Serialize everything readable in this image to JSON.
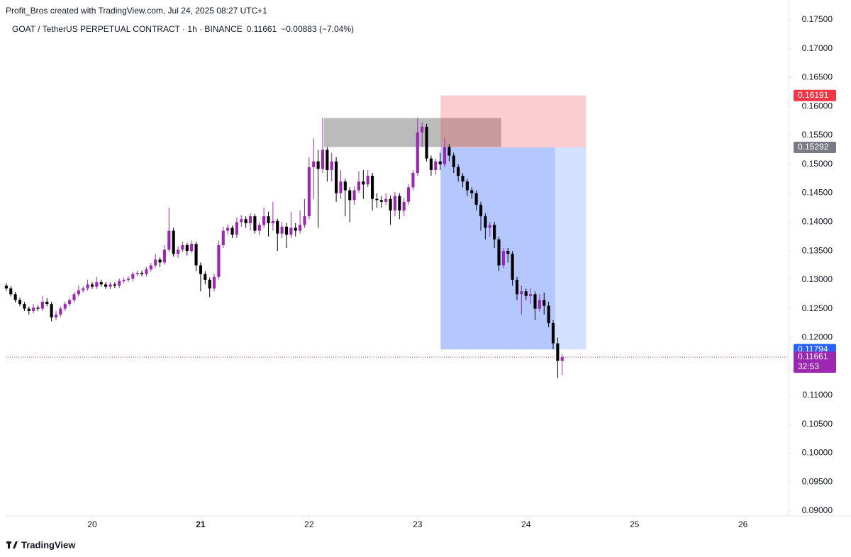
{
  "chart_data": {
    "type": "candlestick",
    "credit": "Profit_Bros created with TradingView.com, Jul 24, 2025 08:27 UTC+1",
    "title": "GOAT / TetherUS PERPETUAL CONTRACT · 1h · BINANCE",
    "last_price": "0.11661",
    "change": "−0.00883 (−7.04%)",
    "brand": "TradingView",
    "up_color": "#9c27b0",
    "down_color": "#000000",
    "x": [
      0,
      1,
      2,
      3,
      4,
      5,
      6,
      7,
      8,
      9,
      10,
      11,
      12,
      13,
      14,
      15,
      16,
      17,
      18,
      19,
      20,
      21,
      22,
      23,
      24,
      25,
      26,
      27,
      28,
      29,
      30,
      31,
      32,
      33,
      34,
      35,
      36,
      37,
      38,
      39,
      40,
      41,
      42,
      43,
      44,
      45,
      46,
      47,
      48,
      49,
      50,
      51,
      52,
      53,
      54,
      55,
      56,
      57,
      58,
      59,
      60,
      61,
      62,
      63,
      64,
      65,
      66,
      67,
      68,
      69,
      70,
      71,
      72,
      73,
      74,
      75,
      76,
      77,
      78,
      79,
      80,
      81,
      82,
      83,
      84,
      85,
      86,
      87,
      88,
      89,
      90,
      91,
      92,
      93,
      94,
      95,
      96,
      97,
      98,
      99,
      100,
      101,
      102,
      103,
      104,
      105,
      106,
      107,
      108,
      109,
      110,
      111,
      112,
      113,
      114,
      115,
      116,
      117,
      118,
      119,
      120,
      121,
      122,
      123
    ],
    "open": [
      0.129,
      0.1285,
      0.1275,
      0.1265,
      0.1258,
      0.125,
      0.1246,
      0.1252,
      0.125,
      0.1262,
      0.1258,
      0.1235,
      0.124,
      0.125,
      0.1258,
      0.1265,
      0.1275,
      0.1282,
      0.1285,
      0.1292,
      0.1288,
      0.1296,
      0.1292,
      0.1288,
      0.1292,
      0.129,
      0.1298,
      0.13,
      0.1302,
      0.131,
      0.1312,
      0.131,
      0.1318,
      0.1325,
      0.1335,
      0.133,
      0.1352,
      0.1385,
      0.1345,
      0.1352,
      0.136,
      0.135,
      0.1362,
      0.1325,
      0.131,
      0.13,
      0.1285,
      0.1305,
      0.136,
      0.1385,
      0.139,
      0.1378,
      0.14,
      0.1405,
      0.1398,
      0.141,
      0.1385,
      0.1395,
      0.141,
      0.1398,
      0.1402,
      0.138,
      0.1392,
      0.1378,
      0.139,
      0.1385,
      0.1395,
      0.141,
      0.1495,
      0.1505,
      0.1492,
      0.1525,
      0.149,
      0.1505,
      0.145,
      0.147,
      0.1455,
      0.1438,
      0.1455,
      0.147,
      0.1465,
      0.148,
      0.144,
      0.1438,
      0.1435,
      0.144,
      0.142,
      0.1445,
      0.142,
      0.1435,
      0.146,
      0.1485,
      0.1555,
      0.1565,
      0.151,
      0.149,
      0.1505,
      0.15,
      0.153,
      0.1515,
      0.1495,
      0.148,
      0.147,
      0.1455,
      0.145,
      0.143,
      0.141,
      0.139,
      0.1395,
      0.137,
      0.1325,
      0.135,
      0.1345,
      0.13,
      0.1275,
      0.128,
      0.1272,
      0.1275,
      0.125,
      0.1265,
      0.1255,
      0.1225,
      0.119,
      0.116
    ],
    "high": [
      0.1294,
      0.1289,
      0.1279,
      0.1269,
      0.1262,
      0.1254,
      0.1258,
      0.1256,
      0.1272,
      0.1268,
      0.1262,
      0.1246,
      0.1254,
      0.1262,
      0.1269,
      0.1279,
      0.129,
      0.1289,
      0.13,
      0.1296,
      0.1305,
      0.13,
      0.1296,
      0.1296,
      0.1296,
      0.1302,
      0.1304,
      0.1306,
      0.1314,
      0.1316,
      0.1316,
      0.1322,
      0.1329,
      0.1345,
      0.1339,
      0.136,
      0.1425,
      0.139,
      0.1358,
      0.1366,
      0.1364,
      0.1368,
      0.1366,
      0.133,
      0.1315,
      0.1304,
      0.131,
      0.1368,
      0.1392,
      0.1396,
      0.1394,
      0.1408,
      0.1412,
      0.141,
      0.1415,
      0.1414,
      0.14,
      0.1425,
      0.1418,
      0.1435,
      0.1406,
      0.14,
      0.1398,
      0.1418,
      0.1398,
      0.142,
      0.144,
      0.1512,
      0.1545,
      0.1525,
      0.158,
      0.153,
      0.152,
      0.1512,
      0.149,
      0.1475,
      0.146,
      0.1462,
      0.1488,
      0.149,
      0.149,
      0.1485,
      0.145,
      0.1445,
      0.145,
      0.1446,
      0.1452,
      0.145,
      0.1442,
      0.1466,
      0.149,
      0.158,
      0.1572,
      0.157,
      0.1515,
      0.151,
      0.152,
      0.1545,
      0.1535,
      0.152,
      0.15,
      0.1485,
      0.1475,
      0.146,
      0.1455,
      0.1435,
      0.1415,
      0.14,
      0.14,
      0.1375,
      0.1355,
      0.1355,
      0.135,
      0.1305,
      0.129,
      0.1285,
      0.1285,
      0.128,
      0.1275,
      0.1278,
      0.1262,
      0.123,
      0.12,
      0.1172
    ],
    "low": [
      0.1281,
      0.1271,
      0.1261,
      0.1254,
      0.1246,
      0.124,
      0.1242,
      0.1246,
      0.1246,
      0.1254,
      0.1228,
      0.123,
      0.1236,
      0.1246,
      0.1254,
      0.1261,
      0.1271,
      0.1278,
      0.1281,
      0.1284,
      0.1284,
      0.1288,
      0.1284,
      0.1284,
      0.1286,
      0.1286,
      0.1294,
      0.1296,
      0.1298,
      0.1306,
      0.1306,
      0.1306,
      0.1314,
      0.1321,
      0.1322,
      0.1326,
      0.1348,
      0.134,
      0.1338,
      0.1348,
      0.1342,
      0.1346,
      0.1315,
      0.128,
      0.1292,
      0.127,
      0.128,
      0.13,
      0.1355,
      0.1378,
      0.1372,
      0.1372,
      0.1392,
      0.139,
      0.1385,
      0.138,
      0.1378,
      0.139,
      0.1375,
      0.1385,
      0.135,
      0.1372,
      0.1355,
      0.1372,
      0.1375,
      0.138,
      0.139,
      0.1405,
      0.144,
      0.139,
      0.1485,
      0.147,
      0.147,
      0.1435,
      0.144,
      0.141,
      0.14,
      0.143,
      0.145,
      0.144,
      0.146,
      0.142,
      0.1425,
      0.1425,
      0.143,
      0.1395,
      0.141,
      0.1405,
      0.141,
      0.143,
      0.1455,
      0.148,
      0.153,
      0.1505,
      0.148,
      0.1482,
      0.149,
      0.1495,
      0.1505,
      0.1485,
      0.147,
      0.146,
      0.1445,
      0.144,
      0.142,
      0.1385,
      0.137,
      0.1375,
      0.1355,
      0.1315,
      0.132,
      0.133,
      0.129,
      0.1265,
      0.124,
      0.1265,
      0.1258,
      0.123,
      0.1245,
      0.124,
      0.1218,
      0.118,
      0.113,
      0.1135
    ],
    "close": [
      0.1285,
      0.1275,
      0.1265,
      0.1258,
      0.125,
      0.1246,
      0.1252,
      0.125,
      0.1262,
      0.1258,
      0.1235,
      0.124,
      0.125,
      0.1258,
      0.1265,
      0.1275,
      0.1282,
      0.1285,
      0.1292,
      0.1288,
      0.1296,
      0.1292,
      0.1288,
      0.1292,
      0.129,
      0.1298,
      0.13,
      0.1302,
      0.131,
      0.1312,
      0.131,
      0.1318,
      0.1325,
      0.1335,
      0.133,
      0.1352,
      0.1385,
      0.1345,
      0.1352,
      0.136,
      0.135,
      0.1362,
      0.1325,
      0.131,
      0.13,
      0.1285,
      0.1305,
      0.136,
      0.1385,
      0.139,
      0.1378,
      0.14,
      0.1405,
      0.1398,
      0.141,
      0.1385,
      0.1395,
      0.141,
      0.1398,
      0.1402,
      0.138,
      0.1392,
      0.1378,
      0.139,
      0.1385,
      0.1395,
      0.141,
      0.1495,
      0.1505,
      0.1492,
      0.1525,
      0.149,
      0.1505,
      0.145,
      0.147,
      0.1455,
      0.1438,
      0.1455,
      0.147,
      0.1465,
      0.148,
      0.144,
      0.1438,
      0.1435,
      0.144,
      0.142,
      0.1445,
      0.142,
      0.1435,
      0.146,
      0.1485,
      0.1555,
      0.1565,
      0.151,
      0.149,
      0.1505,
      0.15,
      0.153,
      0.1515,
      0.1495,
      0.148,
      0.147,
      0.1455,
      0.145,
      0.143,
      0.141,
      0.139,
      0.1395,
      0.137,
      0.1325,
      0.135,
      0.1345,
      0.13,
      0.1275,
      0.128,
      0.1272,
      0.1275,
      0.125,
      0.1265,
      0.1255,
      0.1225,
      0.119,
      0.116,
      0.1166
    ],
    "xlim": [
      -0.14,
      173.1
    ],
    "xticks": [
      {
        "value": 19,
        "label": "20"
      },
      {
        "value": 43,
        "label": "21"
      },
      {
        "value": 67,
        "label": "22"
      },
      {
        "value": 91,
        "label": "23"
      },
      {
        "value": 115,
        "label": "24"
      },
      {
        "value": 139,
        "label": "25"
      },
      {
        "value": 163,
        "label": "26"
      }
    ],
    "ylim": [
      0.08914,
      0.17843
    ],
    "yticks": [
      {
        "value": 0.09,
        "label": "0.09000"
      },
      {
        "value": 0.095,
        "label": "0.09500"
      },
      {
        "value": 0.1,
        "label": "0.10000"
      },
      {
        "value": 0.105,
        "label": "0.10500"
      },
      {
        "value": 0.11,
        "label": "0.11000"
      },
      {
        "value": 0.115,
        "label": "0.11500"
      },
      {
        "value": 0.12,
        "label": "0.12000"
      },
      {
        "value": 0.125,
        "label": "0.12500"
      },
      {
        "value": 0.13,
        "label": "0.13000"
      },
      {
        "value": 0.135,
        "label": "0.13500"
      },
      {
        "value": 0.14,
        "label": "0.14000"
      },
      {
        "value": 0.145,
        "label": "0.14500"
      },
      {
        "value": 0.15,
        "label": "0.15000"
      },
      {
        "value": 0.155,
        "label": "0.15500"
      },
      {
        "value": 0.16,
        "label": "0.16000"
      },
      {
        "value": 0.165,
        "label": "0.16500"
      },
      {
        "value": 0.17,
        "label": "0.17000"
      },
      {
        "value": 0.175,
        "label": "0.17500"
      }
    ],
    "zones": [
      {
        "x": [
          70.3,
          109.5
        ],
        "y": [
          0.153,
          0.158
        ],
        "color": "rgba(120,120,120,0.5)"
      },
      {
        "x": [
          96.1,
          128.3
        ],
        "y": [
          0.15292,
          0.16191
        ],
        "color": "rgba(242,54,69,0.25)"
      },
      {
        "x": [
          96.1,
          121.4
        ],
        "y": [
          0.11794,
          0.15292
        ],
        "color": "rgba(41,98,255,0.35)"
      },
      {
        "x": [
          121.4,
          128.3
        ],
        "y": [
          0.11794,
          0.15292
        ],
        "color": "rgba(41,98,255,0.2)"
      }
    ],
    "price_tags": [
      {
        "value": 0.16191,
        "color": "#f23645"
      },
      {
        "value": 0.15292,
        "color": "#787b86"
      },
      {
        "value": 0.11794,
        "color": "#2962ff"
      },
      {
        "value": 0.11661,
        "color": "#9c27b0",
        "countdown": "32:53"
      }
    ]
  }
}
